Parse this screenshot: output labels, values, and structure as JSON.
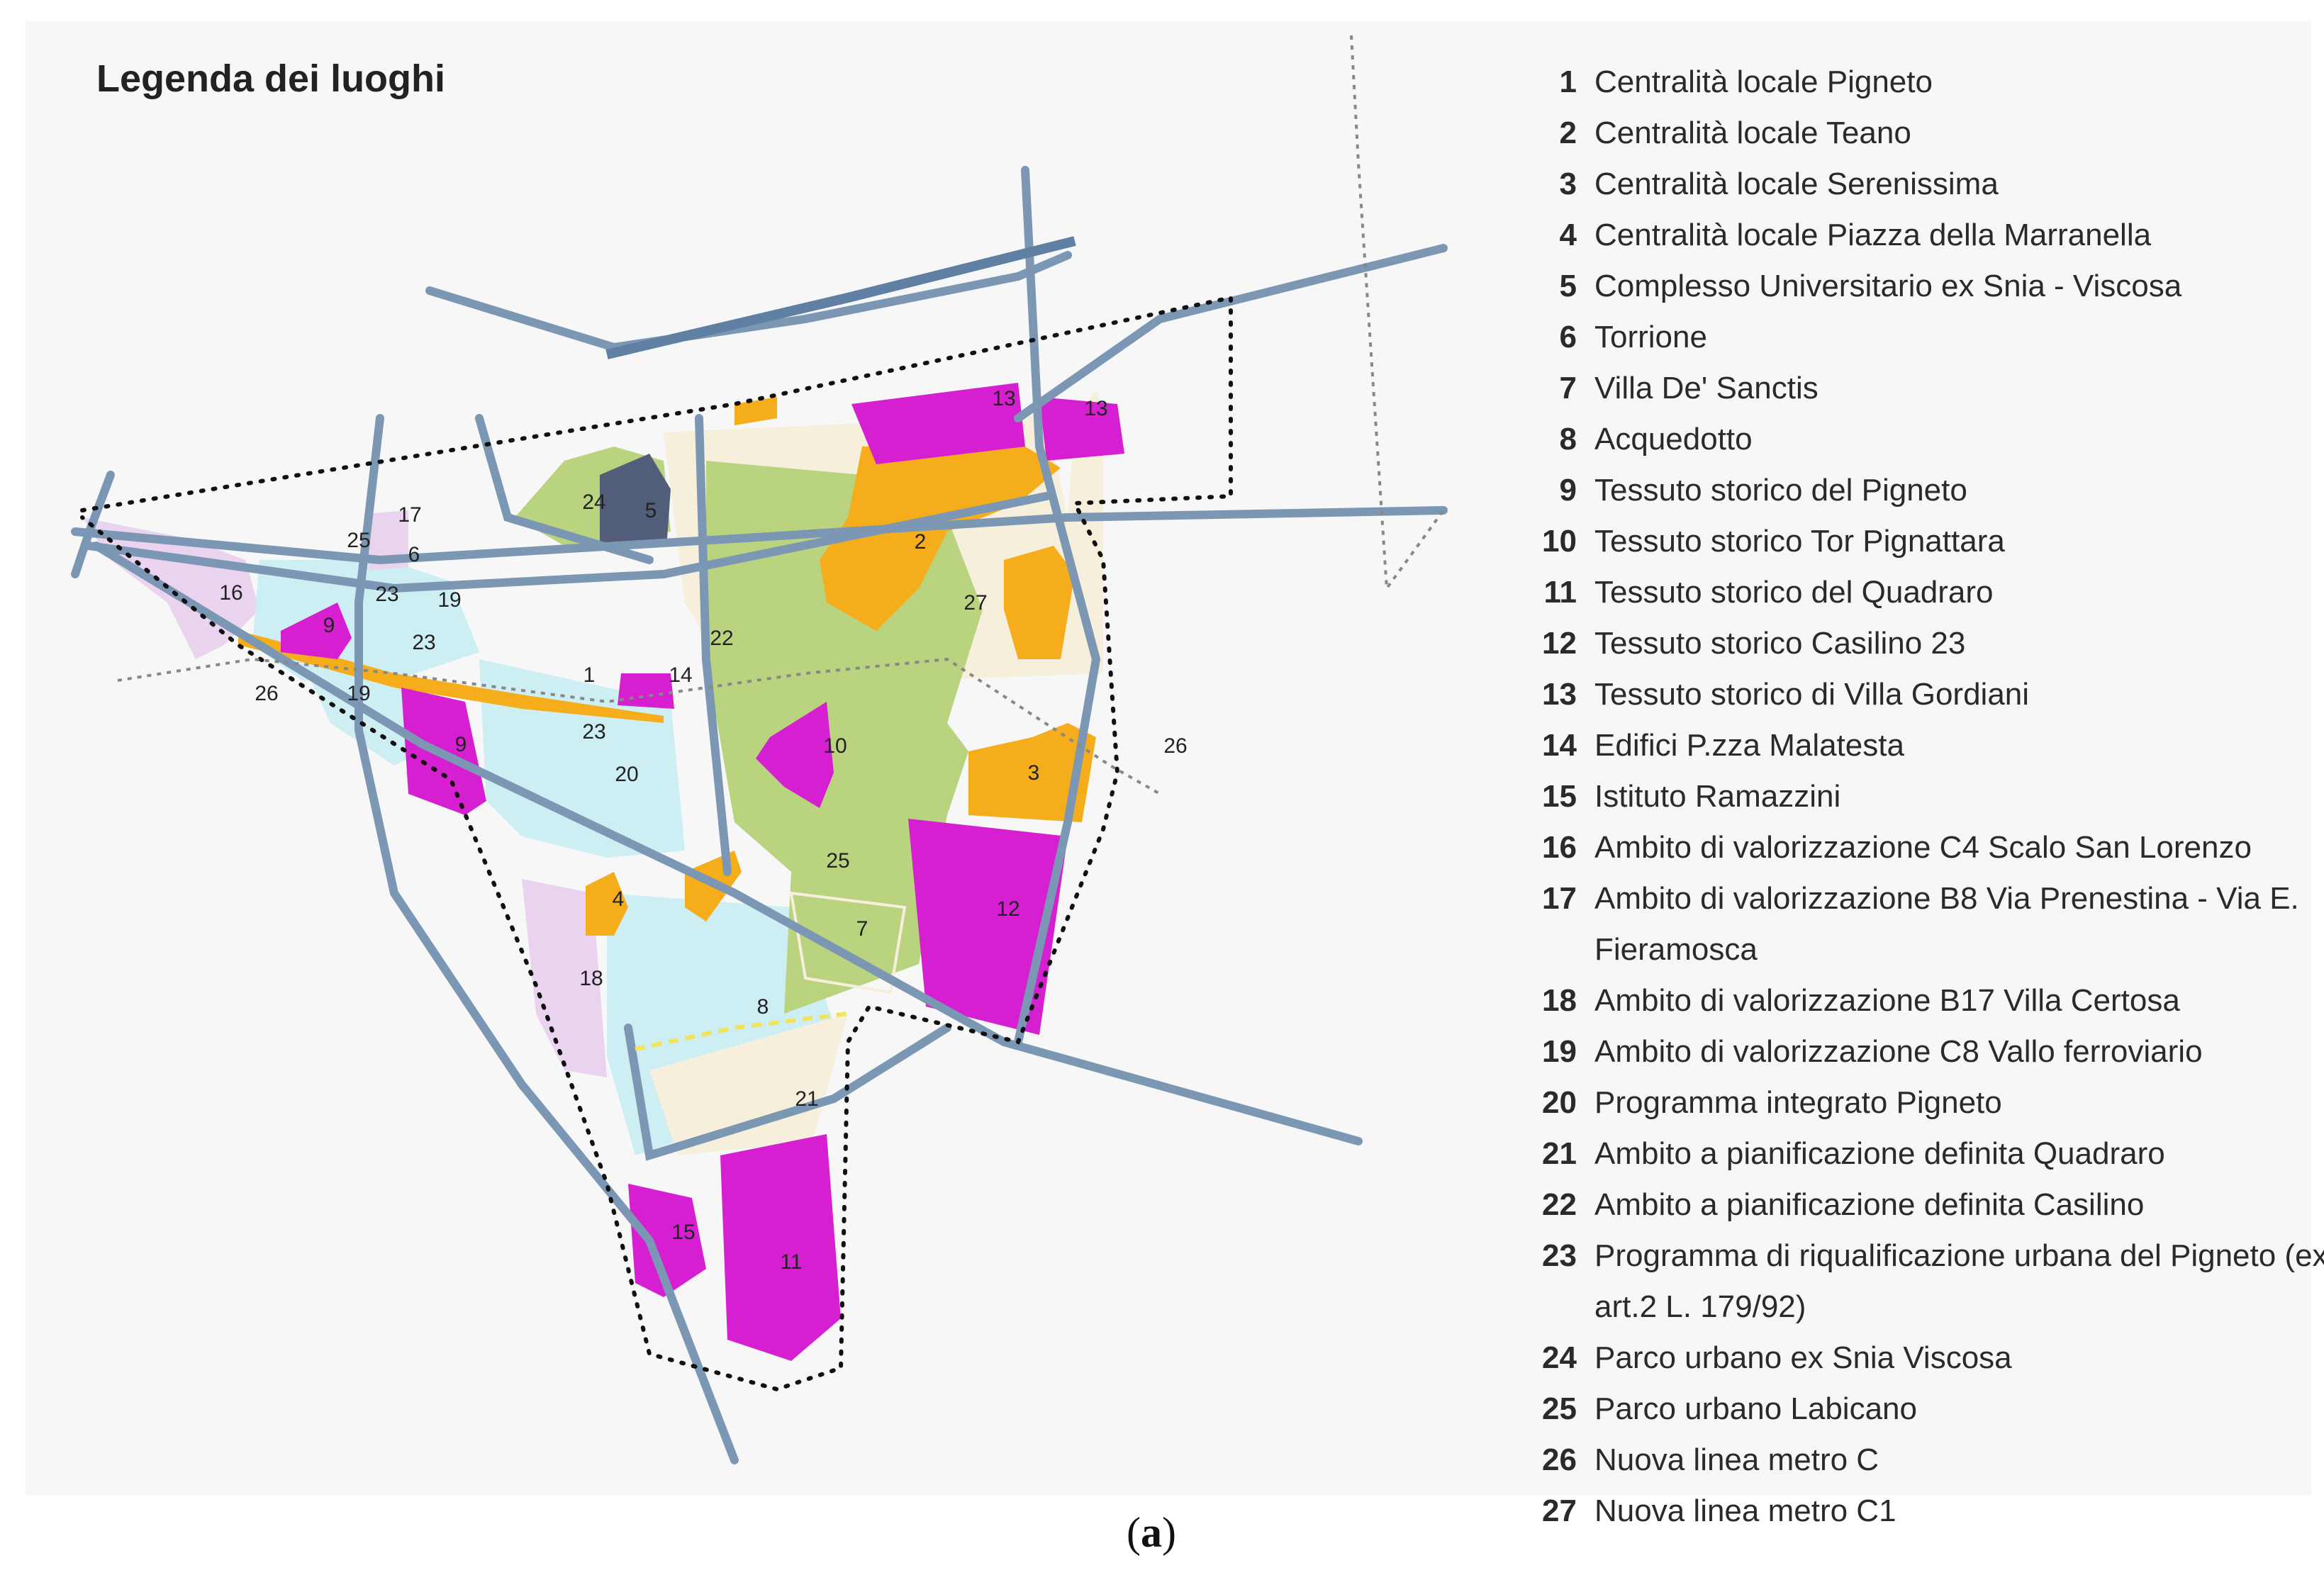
{
  "title": "Legenda dei luoghi",
  "caption": {
    "open": "(",
    "letter": "a",
    "close": ")"
  },
  "colors": {
    "background": "#f7f7f7",
    "magenta": "#d61fd1",
    "orange": "#f5ad1b",
    "green": "#b9d37f",
    "slate": "#525d7a",
    "light_blue": "#cdeef3",
    "beige": "#f5efdc",
    "lavender": "#e9d3ee",
    "road": "#7b97b4",
    "yellow_line": "#f2e45a"
  },
  "legend": [
    {
      "num": "1",
      "text": "Centralità locale Pigneto"
    },
    {
      "num": "2",
      "text": "Centralità locale Teano"
    },
    {
      "num": "3",
      "text": "Centralità locale Serenissima"
    },
    {
      "num": "4",
      "text": "Centralità locale Piazza della Marranella"
    },
    {
      "num": "5",
      "text": "Complesso Universitario ex Snia - Viscosa"
    },
    {
      "num": "6",
      "text": "Torrione"
    },
    {
      "num": "7",
      "text": "Villa De' Sanctis"
    },
    {
      "num": "8",
      "text": "Acquedotto"
    },
    {
      "num": "9",
      "text": "Tessuto storico del Pigneto"
    },
    {
      "num": "10",
      "text": "Tessuto storico Tor Pignattara"
    },
    {
      "num": "11",
      "text": "Tessuto storico del Quadraro"
    },
    {
      "num": "12",
      "text": "Tessuto storico Casilino 23"
    },
    {
      "num": "13",
      "text": "Tessuto storico di Villa Gordiani"
    },
    {
      "num": "14",
      "text": "Edifici P.zza Malatesta"
    },
    {
      "num": "15",
      "text": "Istituto Ramazzini"
    },
    {
      "num": "16",
      "text": "Ambito di valorizzazione C4 Scalo San Lorenzo"
    },
    {
      "num": "17",
      "text": "Ambito di valorizzazione B8 Via Prenestina - Via E. Fieramosca"
    },
    {
      "num": "18",
      "text": "Ambito di valorizzazione B17 Villa Certosa"
    },
    {
      "num": "19",
      "text": "Ambito di valorizzazione C8 Vallo ferroviario"
    },
    {
      "num": "20",
      "text": "Programma integrato Pigneto"
    },
    {
      "num": "21",
      "text": "Ambito a pianificazione definita Quadraro"
    },
    {
      "num": "22",
      "text": "Ambito a pianificazione definita Casilino"
    },
    {
      "num": "23",
      "text": "Programma di riqualificazione urbana del Pigneto (ex art.2 L. 179/92)"
    },
    {
      "num": "24",
      "text": "Parco urbano ex Snia Viscosa"
    },
    {
      "num": "25",
      "text": "Parco urbano Labicano"
    },
    {
      "num": "26",
      "text": "Nuova linea metro C"
    },
    {
      "num": "27",
      "text": "Nuova linea metro C1"
    }
  ],
  "map_labels": {
    "l1": "1",
    "l2": "2",
    "l3": "3",
    "l4": "4",
    "l5": "5",
    "l6": "6",
    "l7": "7",
    "l8": "8",
    "l9a": "9",
    "l9b": "9",
    "l10": "10",
    "l11": "11",
    "l12": "12",
    "l13a": "13",
    "l13b": "13",
    "l14": "14",
    "l15": "15",
    "l16": "16",
    "l17": "17",
    "l18": "18",
    "l19a": "19",
    "l19b": "19",
    "l20": "20",
    "l21": "21",
    "l22": "22",
    "l23a": "23",
    "l23b": "23",
    "l23c": "23",
    "l24": "24",
    "l25a": "25",
    "l25b": "25",
    "l26a": "26",
    "l26b": "26",
    "l27": "27"
  }
}
